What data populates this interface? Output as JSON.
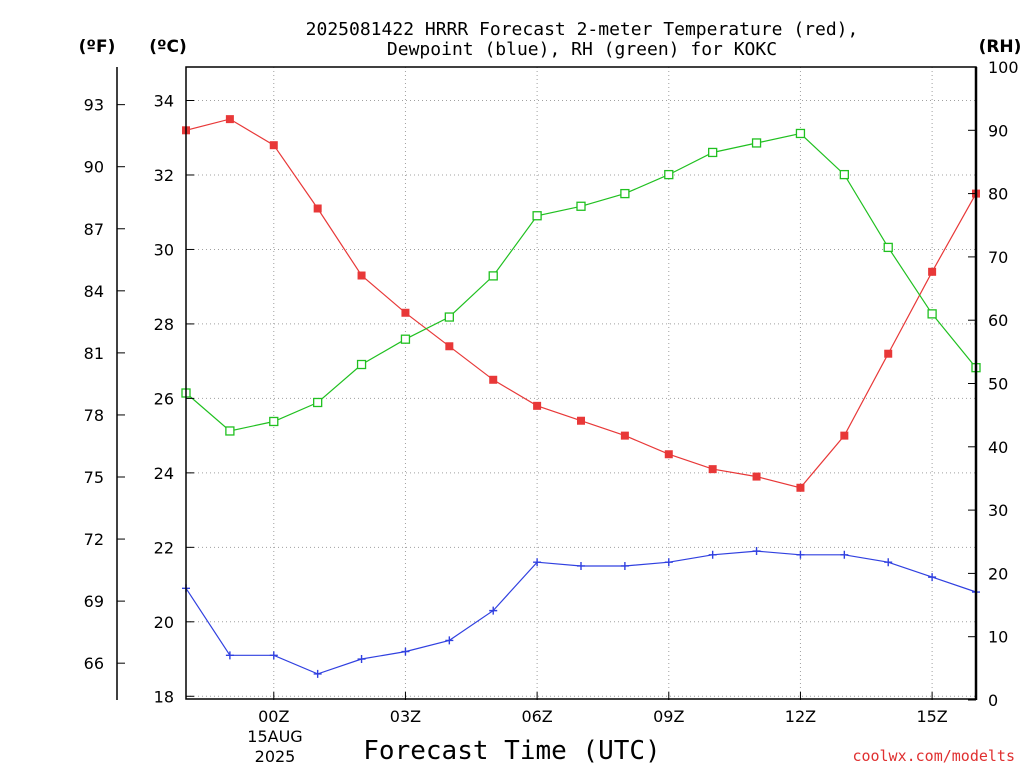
{
  "chart_data": {
    "type": "line",
    "title_line1": "2025081422 HRRR Forecast 2-meter Temperature (red),",
    "title_line2": "Dewpoint (blue), RH (green) for KOKC",
    "xlabel": "Forecast Time (UTC)",
    "credit": "coolwx.com/modelts",
    "unit_f": "(ºF)",
    "unit_c": "(ºC)",
    "unit_rh": "(RH)",
    "x_hours": [
      -2,
      -1,
      0,
      1,
      2,
      3,
      4,
      5,
      6,
      7,
      8,
      9,
      10,
      11,
      12,
      13,
      14,
      15,
      16
    ],
    "xlim": [
      -2,
      16
    ],
    "x_ticks": [
      {
        "hour": 0,
        "label": "00Z"
      },
      {
        "hour": 3,
        "label": "03Z"
      },
      {
        "hour": 6,
        "label": "06Z"
      },
      {
        "hour": 9,
        "label": "09Z"
      },
      {
        "hour": 12,
        "label": "12Z"
      },
      {
        "hour": 15,
        "label": "15Z"
      }
    ],
    "date_label_1": "15AUG",
    "date_label_2": "2025",
    "celsius_axis": {
      "range": [
        17.9,
        34.9
      ],
      "ticks": [
        "18",
        "20",
        "22",
        "24",
        "26",
        "28",
        "30",
        "32",
        "34"
      ]
    },
    "fahrenheit_axis": {
      "ticks": [
        "66",
        "69",
        "72",
        "75",
        "78",
        "81",
        "84",
        "87",
        "90",
        "93"
      ]
    },
    "rh_axis": {
      "range": [
        0,
        100
      ],
      "ticks": [
        "0",
        "10",
        "20",
        "30",
        "40",
        "50",
        "60",
        "70",
        "80",
        "90",
        "100"
      ]
    },
    "series": [
      {
        "name": "Temperature",
        "unit": "C",
        "color": "#e83838",
        "marker": "filled-square",
        "values": [
          33.2,
          33.5,
          32.8,
          31.1,
          29.3,
          28.3,
          27.4,
          26.5,
          25.8,
          25.4,
          25.0,
          24.5,
          24.1,
          23.9,
          23.6,
          25.0,
          27.2,
          29.4,
          31.5
        ]
      },
      {
        "name": "Dewpoint",
        "unit": "C",
        "color": "#3040e0",
        "marker": "plus",
        "values": [
          20.9,
          19.1,
          19.1,
          18.6,
          19.0,
          19.2,
          19.5,
          20.3,
          21.6,
          21.5,
          21.5,
          21.6,
          21.8,
          21.9,
          21.8,
          21.8,
          21.6,
          21.2,
          20.8
        ]
      },
      {
        "name": "RH",
        "unit": "%",
        "color": "#20c020",
        "marker": "open-square",
        "values": [
          48.5,
          42.5,
          44.0,
          47.0,
          53.0,
          57.0,
          60.5,
          67.0,
          76.5,
          78.0,
          80.0,
          83.0,
          86.5,
          88.0,
          89.5,
          83.0,
          71.5,
          61.0,
          52.5
        ]
      }
    ]
  }
}
